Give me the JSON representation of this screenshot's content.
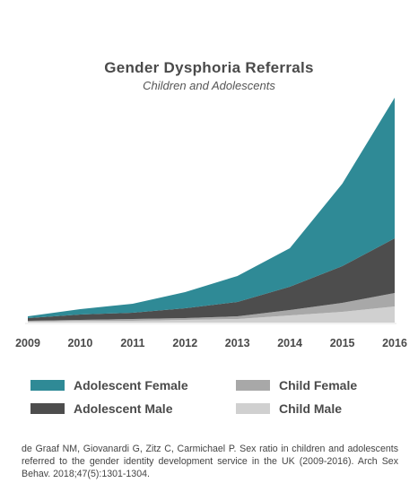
{
  "chart_data": {
    "type": "area",
    "stacked": true,
    "title": "Gender Dysphoria Referrals",
    "subtitle": "Children and Adolescents",
    "x": [
      "2009",
      "2010",
      "2011",
      "2012",
      "2013",
      "2014",
      "2015",
      "2016"
    ],
    "series": [
      {
        "name": "Child Male",
        "color": "#d0d0d0",
        "values": [
          1,
          2,
          2,
          3,
          4,
          8,
          12,
          18
        ]
      },
      {
        "name": "Child Female",
        "color": "#a8a8a8",
        "values": [
          1,
          1,
          2,
          2,
          3,
          6,
          10,
          15
        ]
      },
      {
        "name": "Adolescent Male",
        "color": "#4d4d4d",
        "values": [
          3,
          6,
          7,
          11,
          16,
          26,
          41,
          61
        ]
      },
      {
        "name": "Adolescent Female",
        "color": "#2f8a96",
        "values": [
          2,
          6,
          10,
          18,
          29,
          43,
          92,
          157
        ]
      }
    ],
    "ylim": [
      0,
      260
    ],
    "legend_position": "bottom",
    "grid": false
  },
  "legend": [
    {
      "label": "Adolescent Female",
      "color": "#2f8a96"
    },
    {
      "label": "Child Female",
      "color": "#a8a8a8"
    },
    {
      "label": "Adolescent Male",
      "color": "#4d4d4d"
    },
    {
      "label": "Child Male",
      "color": "#d0d0d0"
    }
  ],
  "citation": "de Graaf NM, Giovanardi G, Zitz C, Carmichael P. Sex ratio in children and adolescents referred to the gender identity development service in the UK (2009-2016). Arch Sex Behav. 2018;47(5):1301-1304."
}
